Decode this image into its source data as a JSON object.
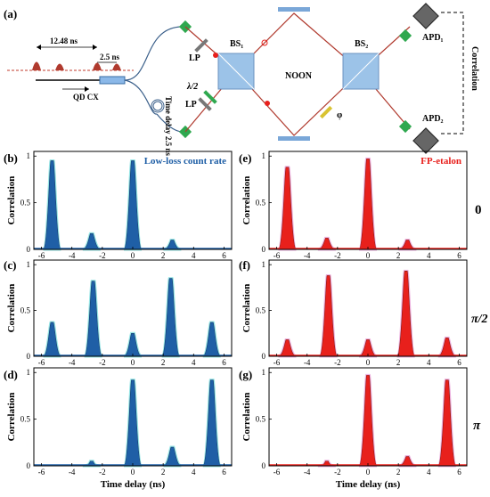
{
  "figure": {
    "panel_labels": {
      "a": "(a)",
      "b": "(b)",
      "c": "(c)",
      "d": "(d)",
      "e": "(e)",
      "f": "(f)",
      "g": "(g)"
    },
    "setup": {
      "period_label": "12.48 ns",
      "delay_label": "2.5 ns",
      "source_label": "QD CX",
      "time_delay_label": "Time delay 2.5 ns",
      "lp_label": "LP",
      "halfwave_label": "λ/2",
      "bs1_label": "BS₁",
      "bs2_label": "BS₂",
      "noon_label": "NOON",
      "phi_label": "φ",
      "apd1_label": "APD₁",
      "apd2_label": "APD₂",
      "correlation_label": "Correlation"
    },
    "row_phase_labels": [
      "0",
      "π/2",
      "π"
    ],
    "colors": {
      "blue": "#1f5fa6",
      "red": "#e8201c",
      "dark_red": "#8b1a10",
      "beam": "#b03a2e",
      "glow_blue": "#7fe0e0",
      "glow_red": "#e8a0d8"
    }
  },
  "chart_data": [
    {
      "id": "b",
      "type": "bar",
      "phase": "0",
      "legend": "Low-loss count rate",
      "color": "#1f5fa6",
      "xlabel": "",
      "ylabel": "Correlation",
      "xlim": [
        -6.5,
        6.5
      ],
      "ylim": [
        0,
        1.05
      ],
      "xticks": [
        -6,
        -4,
        -2,
        0,
        2,
        4,
        6
      ],
      "yticks": [
        0,
        0.5,
        1
      ],
      "peaks": [
        {
          "x": -5.3,
          "h": 0.95
        },
        {
          "x": -2.7,
          "h": 0.17
        },
        {
          "x": 0,
          "h": 0.95
        },
        {
          "x": 2.6,
          "h": 0.1
        }
      ]
    },
    {
      "id": "c",
      "type": "bar",
      "phase": "π/2",
      "legend": "",
      "color": "#1f5fa6",
      "xlabel": "",
      "ylabel": "Correlation",
      "xlim": [
        -6.5,
        6.5
      ],
      "ylim": [
        0,
        1.05
      ],
      "xticks": [
        -6,
        -4,
        -2,
        0,
        2,
        4,
        6
      ],
      "yticks": [
        0,
        0.5,
        1
      ],
      "peaks": [
        {
          "x": -5.3,
          "h": 0.37
        },
        {
          "x": -2.6,
          "h": 0.82
        },
        {
          "x": 0,
          "h": 0.25
        },
        {
          "x": 2.5,
          "h": 0.85
        },
        {
          "x": 5.2,
          "h": 0.37
        }
      ]
    },
    {
      "id": "d",
      "type": "bar",
      "phase": "π",
      "legend": "",
      "color": "#1f5fa6",
      "xlabel": "Time delay (ns)",
      "ylabel": "Correlation",
      "xlim": [
        -6.5,
        6.5
      ],
      "ylim": [
        0,
        1.05
      ],
      "xticks": [
        -6,
        -4,
        -2,
        0,
        2,
        4,
        6
      ],
      "yticks": [
        0,
        0.5,
        1
      ],
      "peaks": [
        {
          "x": -2.7,
          "h": 0.05
        },
        {
          "x": 0,
          "h": 0.92
        },
        {
          "x": 2.6,
          "h": 0.2
        },
        {
          "x": 5.2,
          "h": 0.92
        }
      ]
    },
    {
      "id": "e",
      "type": "bar",
      "phase": "0",
      "legend": "FP-etalon",
      "color": "#e8201c",
      "xlabel": "",
      "ylabel": "Correlation",
      "xlim": [
        -6.5,
        6.5
      ],
      "ylim": [
        0,
        1.05
      ],
      "xticks": [
        -6,
        -4,
        -2,
        0,
        2,
        4,
        6
      ],
      "yticks": [
        0,
        0.5,
        1
      ],
      "peaks": [
        {
          "x": -5.3,
          "h": 0.88
        },
        {
          "x": -2.7,
          "h": 0.12
        },
        {
          "x": 0,
          "h": 0.97
        },
        {
          "x": 2.6,
          "h": 0.1
        }
      ]
    },
    {
      "id": "f",
      "type": "bar",
      "phase": "π/2",
      "legend": "",
      "color": "#e8201c",
      "xlabel": "",
      "ylabel": "Correlation",
      "xlim": [
        -6.5,
        6.5
      ],
      "ylim": [
        0,
        1.05
      ],
      "xticks": [
        -6,
        -4,
        -2,
        0,
        2,
        4,
        6
      ],
      "yticks": [
        0,
        0.5,
        1
      ],
      "peaks": [
        {
          "x": -5.3,
          "h": 0.18
        },
        {
          "x": -2.6,
          "h": 0.88
        },
        {
          "x": 0,
          "h": 0.18
        },
        {
          "x": 2.5,
          "h": 0.93
        },
        {
          "x": 5.2,
          "h": 0.2
        }
      ]
    },
    {
      "id": "g",
      "type": "bar",
      "phase": "π",
      "legend": "",
      "color": "#e8201c",
      "xlabel": "Time delay (ns)",
      "ylabel": "Correlation",
      "xlim": [
        -6.5,
        6.5
      ],
      "ylim": [
        0,
        1.05
      ],
      "xticks": [
        -6,
        -4,
        -2,
        0,
        2,
        4,
        6
      ],
      "yticks": [
        0,
        0.5,
        1
      ],
      "peaks": [
        {
          "x": -2.7,
          "h": 0.05
        },
        {
          "x": 0,
          "h": 0.97
        },
        {
          "x": 2.6,
          "h": 0.1
        },
        {
          "x": 5.2,
          "h": 0.92
        }
      ]
    }
  ]
}
